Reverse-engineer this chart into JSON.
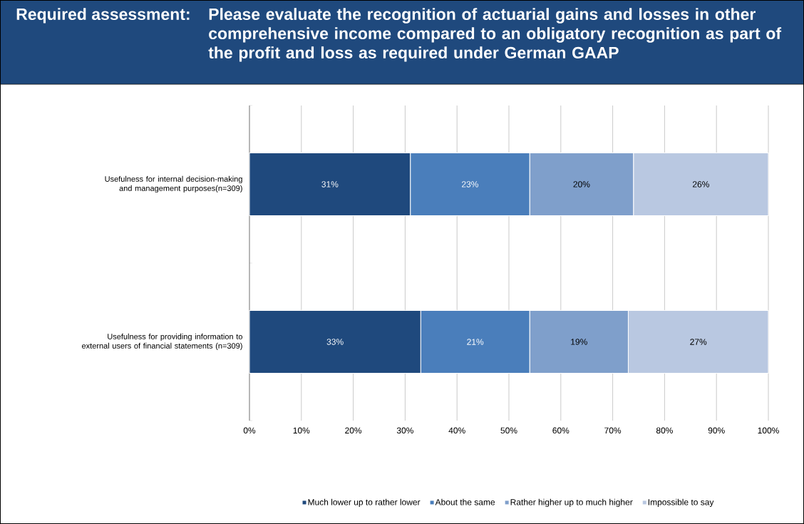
{
  "chart_data": {
    "type": "bar",
    "orientation": "horizontal",
    "stacked": true,
    "title": "Required assessment:",
    "subtitle": "Please evaluate the recognition of actuarial gains and losses in other comprehensive income compared to an obligatory recognition as part of the profit and loss as required under German GAAP",
    "categories": [
      "Usefulness for internal decision-making and management purposes(n=309)",
      "Usefulness for providing information to external users of financial statements (n=309)"
    ],
    "series": [
      {
        "name": "Much lower up to rather lower",
        "color": "#1F497D",
        "values": [
          31,
          33
        ],
        "value_labels": [
          "31%",
          "33%"
        ]
      },
      {
        "name": "About the same",
        "color": "#4A7EBB",
        "values": [
          23,
          21
        ],
        "value_labels": [
          "23%",
          "21%"
        ]
      },
      {
        "name": "Rather higher up to much higher",
        "color": "#7F9FCB",
        "values": [
          20,
          19
        ],
        "value_labels": [
          "20%",
          "19%"
        ]
      },
      {
        "name": "Impossible to say",
        "color": "#B9C8E1",
        "values": [
          26,
          27
        ],
        "value_labels": [
          "26%",
          "27%"
        ]
      }
    ],
    "xlim": [
      0,
      100
    ],
    "xticks": [
      {
        "value": 0,
        "label": "0%"
      },
      {
        "value": 10,
        "label": "10%"
      },
      {
        "value": 20,
        "label": "20%"
      },
      {
        "value": 30,
        "label": "30%"
      },
      {
        "value": 40,
        "label": "40%"
      },
      {
        "value": 50,
        "label": "50%"
      },
      {
        "value": 60,
        "label": "60%"
      },
      {
        "value": 70,
        "label": "70%"
      },
      {
        "value": 80,
        "label": "80%"
      },
      {
        "value": 90,
        "label": "90%"
      },
      {
        "value": 100,
        "label": "100%"
      }
    ],
    "grid": "x",
    "legend": "bottom"
  }
}
